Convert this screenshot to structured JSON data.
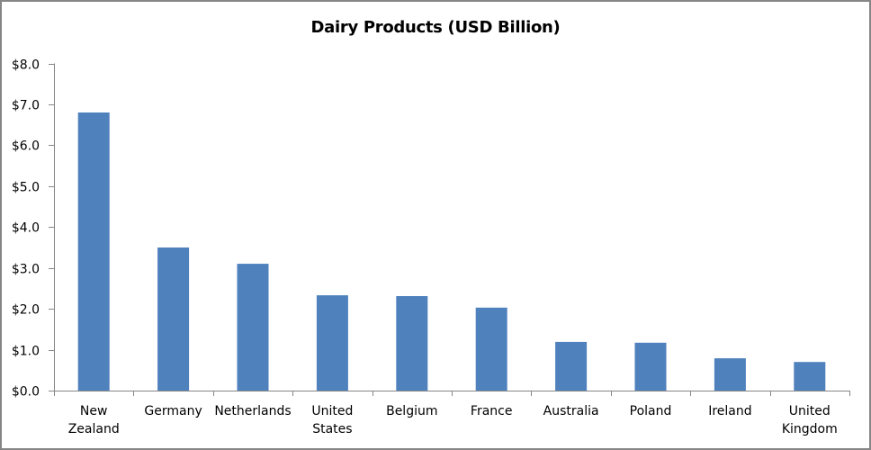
{
  "chart_data": {
    "type": "bar",
    "title": "Dairy Products (USD Billion)",
    "xlabel": "",
    "ylabel": "",
    "categories": [
      "New Zealand",
      "Germany",
      "Netherlands",
      "United States",
      "Belgium",
      "France",
      "Australia",
      "Poland",
      "Ireland",
      "United Kingdom"
    ],
    "category_lines": [
      [
        "New",
        "Zealand"
      ],
      [
        "Germany"
      ],
      [
        "Netherlands"
      ],
      [
        "United",
        "States"
      ],
      [
        "Belgium"
      ],
      [
        "France"
      ],
      [
        "Australia"
      ],
      [
        "Poland"
      ],
      [
        "Ireland"
      ],
      [
        "United",
        "Kingdom"
      ]
    ],
    "values": [
      6.8,
      3.5,
      3.1,
      2.33,
      2.31,
      2.03,
      1.19,
      1.17,
      0.79,
      0.7
    ],
    "ylim": [
      0,
      8
    ],
    "yticks": [
      0,
      1,
      2,
      3,
      4,
      5,
      6,
      7,
      8
    ],
    "ytick_labels": [
      "$0.0",
      "$1.0",
      "$2.0",
      "$3.0",
      "$4.0",
      "$5.0",
      "$6.0",
      "$7.0",
      "$8.0"
    ],
    "grid": false,
    "legend": null,
    "bar_color": "#4F81BD",
    "axis_color": "#868686"
  }
}
